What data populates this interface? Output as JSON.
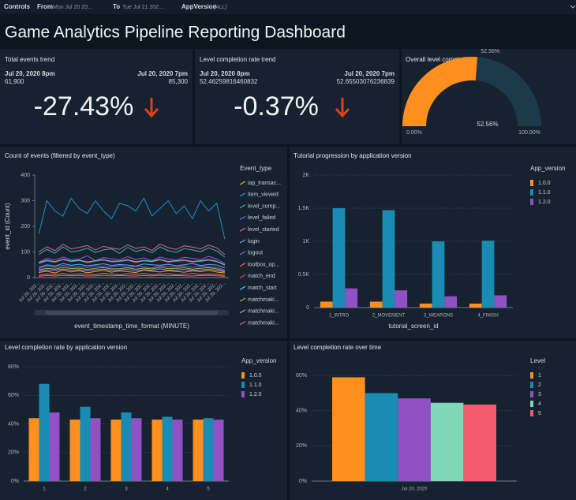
{
  "controls": {
    "label": "Controls",
    "from_label": "From",
    "from_value": "Mon Jul 20 20...",
    "to_label": "To",
    "to_value": "Tue Jul 21 202...",
    "app_version_label": "AppVersion",
    "app_version_value": "[ALL]"
  },
  "title": "Game Analytics Pipeline Reporting Dashboard",
  "kpis": [
    {
      "title": "Total events trend",
      "left_date": "Jul 20, 2020 8pm",
      "left_value": "61,900",
      "right_date": "Jul 20, 2020 7pm",
      "right_value": "85,300",
      "change": "-27.43%"
    },
    {
      "title": "Level completion rate trend",
      "left_date": "Jul 20, 2020 8pm",
      "left_value": "52.46259816460832",
      "right_date": "Jul 20, 2020 7pm",
      "right_value": "52.65503076236839",
      "change": "-0.37%"
    }
  ],
  "chart_data": [
    {
      "type": "gauge",
      "title": "Overall level completion rate",
      "value": 52.56,
      "value_label": "52.56%",
      "min": 0,
      "min_label": "0.00%",
      "max": 100,
      "max_label": "100.00%",
      "color": "#ff8f1f",
      "track_color": "#1d3a4b"
    },
    {
      "type": "line",
      "title": "Count of events (filtered by event_type)",
      "x_label": "event_timestamp_time_format (MINUTE)",
      "y_label": "event_id (Count)",
      "legend_title": "Event_type",
      "categories": [
        "Jul 20, 202...",
        "Jul 20, 202...",
        "Jul 20, 202...",
        "Jul 20, 202...",
        "Jul 20, 202...",
        "Jul 20, 202...",
        "Jul 20, 202...",
        "Jul 20, 202...",
        "Jul 20, 202...",
        "Jul 20, 202...",
        "Jul 20, 202...",
        "Jul 20, 202...",
        "Jul 20, 202...",
        "Jul 20, 202...",
        "Jul 20, 202...",
        "Jul 20, 202...",
        "Jul 20, 202...",
        "Jul 20, 202...",
        "Jul 20, 202...",
        "Jul 20, 202...",
        "Jul 20, 202...",
        "Jul 20, 202...",
        "Jul 20, 202...",
        "Jul 20, 202..."
      ],
      "ylim": [
        0,
        400
      ],
      "yticks": [
        0,
        100,
        200,
        300,
        400
      ],
      "series": [
        {
          "name": "iap_transac...",
          "color": "#f5a623",
          "values": [
            20,
            25,
            18,
            30,
            22,
            27,
            19,
            24,
            28,
            21,
            26,
            23,
            20,
            29,
            25,
            22,
            27,
            24,
            21,
            26,
            23,
            28,
            22,
            18
          ]
        },
        {
          "name": "item_viewed",
          "color": "#1f8fc7",
          "values": [
            170,
            300,
            260,
            240,
            310,
            270,
            250,
            300,
            260,
            230,
            290,
            280,
            260,
            310,
            240,
            270,
            300,
            250,
            280,
            230,
            300,
            260,
            290,
            150
          ]
        },
        {
          "name": "level_comp...",
          "color": "#35b7a8",
          "values": [
            90,
            110,
            95,
            120,
            100,
            105,
            115,
            98,
            108,
            112,
            95,
            118,
            102,
            110,
            97,
            120,
            105,
            99,
            113,
            108,
            101,
            116,
            104,
            80
          ]
        },
        {
          "name": "level_failed",
          "color": "#9b59d0",
          "values": [
            60,
            75,
            68,
            80,
            70,
            72,
            85,
            66,
            78,
            74,
            69,
            82,
            71,
            77,
            65,
            80,
            73,
            68,
            79,
            75,
            70,
            83,
            72,
            55
          ]
        },
        {
          "name": "level_started",
          "color": "#e0609a",
          "values": [
            100,
            120,
            105,
            130,
            112,
            118,
            125,
            108,
            122,
            115,
            110,
            128,
            114,
            120,
            106,
            131,
            117,
            110,
            124,
            119,
            112,
            127,
            116,
            90
          ]
        },
        {
          "name": "login",
          "color": "#5fb0e6",
          "values": [
            40,
            50,
            45,
            55,
            48,
            52,
            46,
            50,
            54,
            47,
            51,
            49,
            45,
            53,
            50,
            48,
            52,
            46,
            50,
            55,
            47,
            51,
            49,
            38
          ]
        },
        {
          "name": "logout",
          "color": "#7b62d6",
          "values": [
            35,
            45,
            40,
            48,
            42,
            44,
            39,
            46,
            43,
            41,
            47,
            40,
            44,
            42,
            38,
            46,
            43,
            41,
            45,
            40,
            44,
            42,
            39,
            30
          ]
        },
        {
          "name": "lootbox_op...",
          "color": "#ff7043",
          "values": [
            10,
            14,
            12,
            16,
            11,
            15,
            13,
            12,
            17,
            14,
            11,
            15,
            13,
            16,
            12,
            14,
            15,
            11,
            13,
            16,
            12,
            14,
            13,
            9
          ]
        },
        {
          "name": "match_end",
          "color": "#e74c5b",
          "values": [
            55,
            65,
            60,
            70,
            62,
            66,
            58,
            64,
            68,
            61,
            63,
            67,
            59,
            65,
            62,
            69,
            60,
            64,
            66,
            61,
            63,
            68,
            62,
            48
          ]
        },
        {
          "name": "match_start",
          "color": "#4fc3f7",
          "values": [
            58,
            68,
            62,
            72,
            65,
            68,
            61,
            66,
            70,
            64,
            65,
            70,
            62,
            67,
            64,
            71,
            63,
            66,
            69,
            63,
            66,
            70,
            64,
            50
          ]
        },
        {
          "name": "matchmaki...",
          "color": "#8bc34a",
          "values": [
            30,
            36,
            33,
            40,
            35,
            37,
            32,
            36,
            39,
            34,
            35,
            38,
            33,
            37,
            34,
            40,
            35,
            36,
            38,
            33,
            36,
            39,
            34,
            26
          ]
        },
        {
          "name": "matchmaki...",
          "color": "#c77dd9",
          "values": [
            25,
            30,
            28,
            34,
            29,
            31,
            27,
            30,
            33,
            28,
            30,
            32,
            27,
            31,
            29,
            34,
            29,
            30,
            32,
            28,
            30,
            33,
            29,
            22
          ]
        },
        {
          "name": "matchmaki...",
          "color": "#f06292",
          "values": [
            5,
            8,
            6,
            9,
            7,
            8,
            6,
            7,
            9,
            7,
            8,
            7,
            6,
            8,
            7,
            9,
            7,
            8,
            7,
            6,
            8,
            9,
            7,
            5
          ]
        }
      ]
    },
    {
      "type": "bar",
      "title": "Tutorial progression by application version",
      "x_label": "tutorial_screen_id",
      "legend_title": "App_version",
      "categories": [
        "1_INTRO",
        "2_MOVEMENT",
        "3_WEAPONS",
        "4_FINISH"
      ],
      "ylim": [
        0,
        2000
      ],
      "yticks": [
        0,
        {
          "value": 500,
          "label": "0.5K"
        },
        {
          "value": 1000,
          "label": "1K"
        },
        {
          "value": 1500,
          "label": "1.5K"
        },
        {
          "value": 2000,
          "label": "2K"
        }
      ],
      "grid": true,
      "series": [
        {
          "name": "1.0.0",
          "color": "#ff8f1f",
          "values": [
            90,
            90,
            60,
            60
          ]
        },
        {
          "name": "1.1.0",
          "color": "#1a8bb3",
          "values": [
            1500,
            1470,
            1000,
            1010
          ]
        },
        {
          "name": "1.2.0",
          "color": "#8f51c4",
          "values": [
            290,
            260,
            170,
            185
          ]
        }
      ]
    },
    {
      "type": "bar",
      "title": "Level completion rate by application version",
      "legend_title": "App_version",
      "categories": [
        "1",
        "2",
        "3",
        "4",
        "5"
      ],
      "ylim": [
        0,
        80
      ],
      "yticks": [
        {
          "value": 0,
          "label": "0%"
        },
        {
          "value": 20,
          "label": "20%"
        },
        {
          "value": 40,
          "label": "40%"
        },
        {
          "value": 60,
          "label": "60%"
        },
        {
          "value": 80,
          "label": "80%"
        }
      ],
      "grid": true,
      "series": [
        {
          "name": "1.0.0",
          "color": "#ff8f1f",
          "values": [
            44,
            43,
            43,
            43,
            43
          ]
        },
        {
          "name": "1.1.0",
          "color": "#1a8bb3",
          "values": [
            68,
            52,
            48,
            45,
            44
          ]
        },
        {
          "name": "1.2.0",
          "color": "#8f51c4",
          "values": [
            48,
            44,
            44,
            43,
            43
          ]
        }
      ]
    },
    {
      "type": "bar",
      "title": "Level completion rate over time",
      "legend_title": "Level",
      "categories": [
        "Jul 20, 2020"
      ],
      "ylim": [
        0,
        65
      ],
      "yticks": [
        {
          "value": 0,
          "label": "0%"
        },
        {
          "value": 20,
          "label": "20%"
        },
        {
          "value": 40,
          "label": "40%"
        },
        {
          "value": 60,
          "label": "60%"
        }
      ],
      "grid": true,
      "series": [
        {
          "name": "1",
          "color": "#ff8f1f",
          "values": [
            59
          ]
        },
        {
          "name": "2",
          "color": "#1a8bb3",
          "values": [
            50
          ]
        },
        {
          "name": "3",
          "color": "#8f51c4",
          "values": [
            47
          ]
        },
        {
          "name": "4",
          "color": "#7fd6b8",
          "values": [
            44.5
          ]
        },
        {
          "name": "5",
          "color": "#f15b6c",
          "values": [
            43.5
          ]
        }
      ]
    }
  ]
}
